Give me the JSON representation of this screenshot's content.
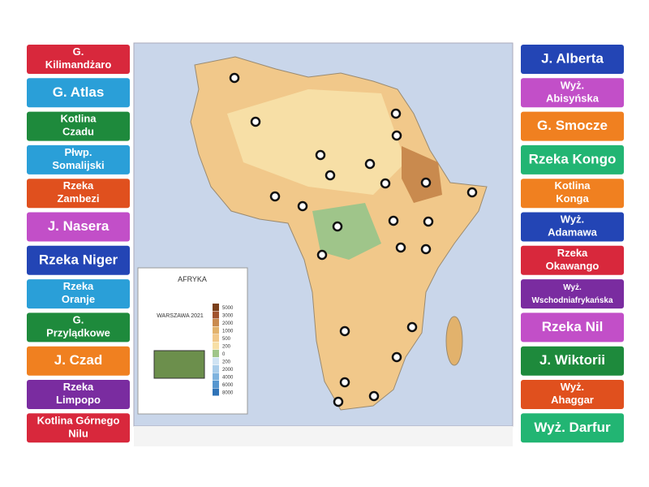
{
  "map": {
    "title": "AFRYKA",
    "subtitle": "WARSZAWA 2021",
    "scale_labels": [
      "5000",
      "3000",
      "2000",
      "1000",
      "500",
      "200",
      "0",
      "200",
      "2000",
      "4000",
      "6000",
      "8000"
    ]
  },
  "labels_left": [
    {
      "text": "G. Kilimandżaro",
      "color": "#d8283c"
    },
    {
      "text": "G. Atlas",
      "color": "#2a9fd8"
    },
    {
      "text": "Kotlina Czadu",
      "color": "#1e8a3c"
    },
    {
      "text": "Płwp. Somalijski",
      "color": "#2a9fd8"
    },
    {
      "text": "Rzeka Zambezi",
      "color": "#e0501e"
    },
    {
      "text": "J. Nasera",
      "color": "#c24fc8"
    },
    {
      "text": "Rzeka Niger",
      "color": "#2345b5"
    },
    {
      "text": "Rzeka Oranje",
      "color": "#2a9fd8"
    },
    {
      "text": "G. Przylądkowe",
      "color": "#1e8a3c"
    },
    {
      "text": "J. Czad",
      "color": "#f08020"
    },
    {
      "text": "Rzeka Limpopo",
      "color": "#7a2ca0"
    },
    {
      "text": "Kotlina Górnego Nilu",
      "color": "#d8283c"
    }
  ],
  "labels_right": [
    {
      "text": "J. Alberta",
      "color": "#2345b5"
    },
    {
      "text": "Wyż. Abisyńska",
      "color": "#c24fc8"
    },
    {
      "text": "G. Smocze",
      "color": "#f08020"
    },
    {
      "text": "Rzeka Kongo",
      "color": "#22b573"
    },
    {
      "text": "Kotlina Konga",
      "color": "#f08020"
    },
    {
      "text": "Wyż. Adamawa",
      "color": "#2345b5"
    },
    {
      "text": "Rzeka Okawango",
      "color": "#d8283c"
    },
    {
      "text": "Wyż. Wschodniafrykańska",
      "color": "#7a2ca0"
    },
    {
      "text": "Rzeka Nil",
      "color": "#c24fc8"
    },
    {
      "text": "J. Wiktorii",
      "color": "#1e8a3c"
    },
    {
      "text": "Wyż. Ahaggar",
      "color": "#e0501e"
    },
    {
      "text": "Wyż. Darfur",
      "color": "#22b573"
    }
  ]
}
